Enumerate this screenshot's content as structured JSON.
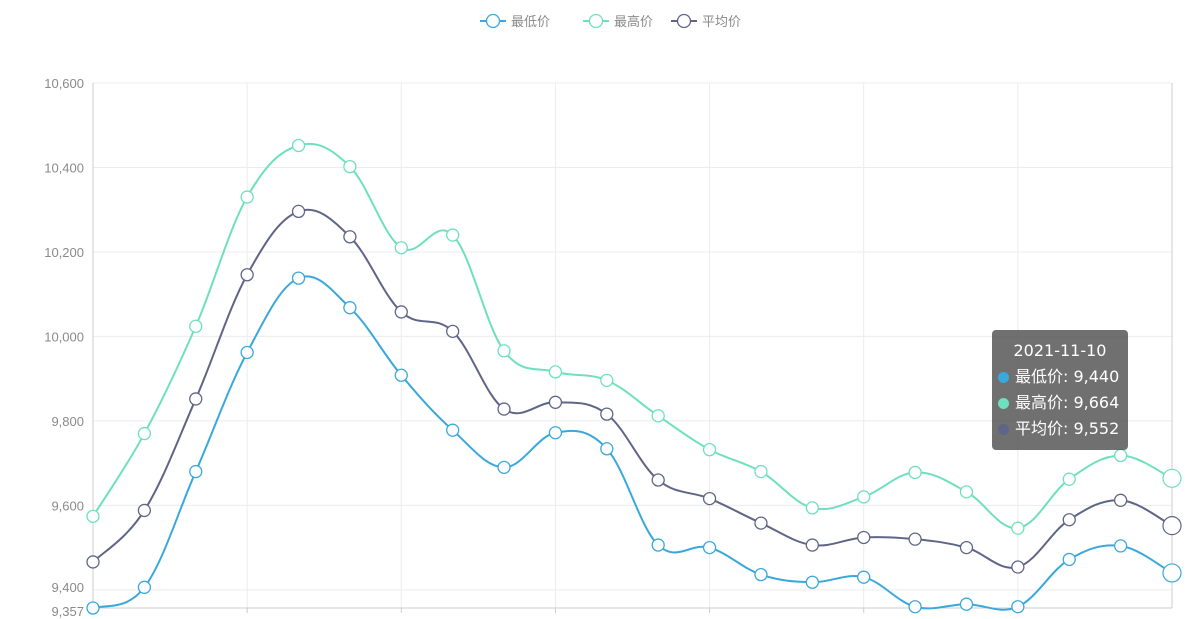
{
  "legend": [
    {
      "label": "最低价",
      "color": "#3aa8db"
    },
    {
      "label": "最高价",
      "color": "#6fe0bd"
    },
    {
      "label": "平均价",
      "color": "#5f6587"
    }
  ],
  "tooltip": {
    "title": "2021-11-10",
    "rows": [
      {
        "text": "最低价: 9,440",
        "color": "#3aa8db"
      },
      {
        "text": "最高价: 9,664",
        "color": "#6fe0bd"
      },
      {
        "text": "平均价: 9,552",
        "color": "#5f6587"
      }
    ]
  },
  "chart_data": {
    "type": "line",
    "smooth": true,
    "ylim": [
      9357,
      10600
    ],
    "yticks": [
      {
        "value": 10600,
        "label": "10,600"
      },
      {
        "value": 10400,
        "label": "10,400"
      },
      {
        "value": 10200,
        "label": "10,200"
      },
      {
        "value": 10000,
        "label": "10,000"
      },
      {
        "value": 9800,
        "label": "9,800"
      },
      {
        "value": 9600,
        "label": "9,600"
      },
      {
        "value": 9400,
        "label": "9,400"
      },
      {
        "value": 9357,
        "label": "9,357"
      }
    ],
    "grid": true,
    "legend_position": "top",
    "series": [
      {
        "name": "最低价",
        "color": "#3aa8db",
        "values": [
          9357,
          9406,
          9680,
          9962,
          10138,
          10068,
          9908,
          9778,
          9690,
          9772,
          9734,
          9506,
          9500,
          9436,
          9418,
          9430,
          9360,
          9366,
          9360,
          9472,
          9504,
          9440
        ]
      },
      {
        "name": "最高价",
        "color": "#6fe0bd",
        "values": [
          9574,
          9770,
          10024,
          10330,
          10452,
          10402,
          10210,
          10240,
          9966,
          9916,
          9896,
          9812,
          9732,
          9680,
          9594,
          9620,
          9678,
          9632,
          9546,
          9662,
          9718,
          9664
        ]
      },
      {
        "name": "平均价",
        "color": "#5f6587",
        "values": [
          9466,
          9588,
          9852,
          10146,
          10296,
          10236,
          10058,
          10012,
          9828,
          9844,
          9816,
          9660,
          9616,
          9558,
          9506,
          9524,
          9520,
          9500,
          9454,
          9566,
          9612,
          9552
        ]
      }
    ],
    "highlight_index": 21
  }
}
